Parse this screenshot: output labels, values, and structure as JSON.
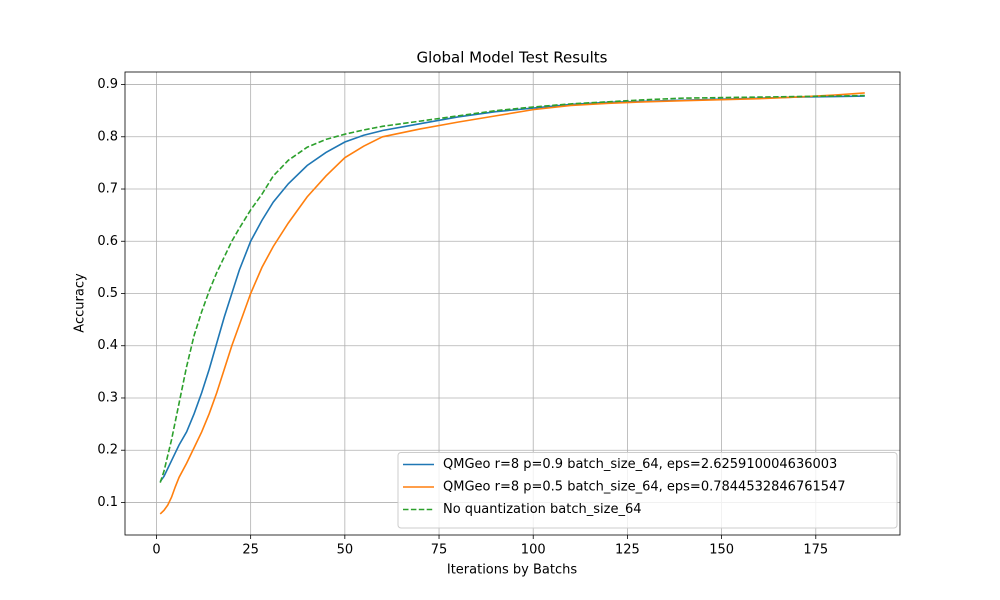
{
  "chart_data": {
    "type": "line",
    "title": "Global Model Test Results",
    "x_label": "Iterations by Batchs",
    "y_label": "Accuracy",
    "x": [
      1,
      2,
      3,
      4,
      5,
      6,
      8,
      10,
      12,
      14,
      16,
      18,
      20,
      22,
      25,
      28,
      31,
      35,
      40,
      45,
      50,
      55,
      60,
      70,
      80,
      90,
      100,
      110,
      120,
      130,
      140,
      150,
      160,
      170,
      180,
      188
    ],
    "series": [
      {
        "name": "QMGeo  r=8  p=0.9  batch_size_64, eps=2.625910004636003",
        "color": "#1f77b4",
        "dash": false,
        "values": [
          0.14,
          0.15,
          0.165,
          0.18,
          0.195,
          0.21,
          0.235,
          0.27,
          0.31,
          0.355,
          0.405,
          0.455,
          0.5,
          0.545,
          0.6,
          0.64,
          0.675,
          0.71,
          0.745,
          0.77,
          0.79,
          0.803,
          0.812,
          0.825,
          0.838,
          0.848,
          0.855,
          0.862,
          0.866,
          0.868,
          0.87,
          0.872,
          0.874,
          0.876,
          0.877,
          0.878
        ]
      },
      {
        "name": "QMGeo  r=8  p=0.5  batch_size_64, eps=0.7844532846761547",
        "color": "#ff7f0e",
        "dash": false,
        "values": [
          0.078,
          0.085,
          0.095,
          0.11,
          0.13,
          0.148,
          0.175,
          0.205,
          0.235,
          0.27,
          0.31,
          0.355,
          0.4,
          0.44,
          0.5,
          0.55,
          0.59,
          0.635,
          0.685,
          0.725,
          0.76,
          0.782,
          0.8,
          0.815,
          0.828,
          0.84,
          0.852,
          0.86,
          0.864,
          0.867,
          0.869,
          0.871,
          0.873,
          0.876,
          0.88,
          0.884
        ]
      },
      {
        "name": "No quantization batch_size_64",
        "color": "#2ca02c",
        "dash": true,
        "values": [
          0.138,
          0.16,
          0.19,
          0.22,
          0.255,
          0.29,
          0.36,
          0.42,
          0.465,
          0.505,
          0.54,
          0.57,
          0.6,
          0.625,
          0.66,
          0.69,
          0.725,
          0.755,
          0.78,
          0.795,
          0.805,
          0.813,
          0.82,
          0.83,
          0.84,
          0.85,
          0.857,
          0.863,
          0.867,
          0.871,
          0.874,
          0.875,
          0.876,
          0.877,
          0.878,
          0.879
        ]
      }
    ],
    "xlim": [
      -8.35,
      197.35
    ],
    "ylim": [
      0.0377,
      0.924
    ],
    "xticks": [
      0,
      25,
      50,
      75,
      100,
      125,
      150,
      175
    ],
    "yticks": [
      0.1,
      0.2,
      0.3,
      0.4,
      0.5,
      0.6,
      0.7,
      0.8,
      0.9
    ],
    "grid": true,
    "legend": "lower-right"
  }
}
